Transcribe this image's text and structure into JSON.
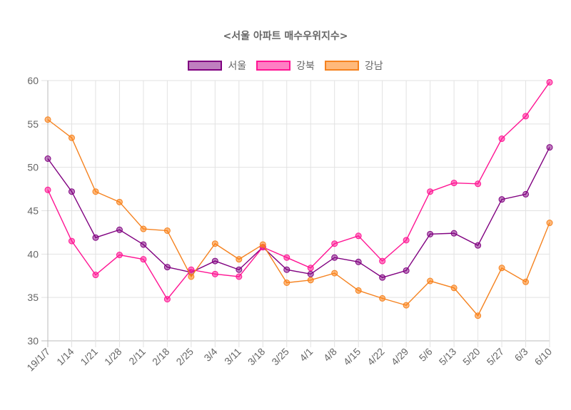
{
  "chart_data": {
    "type": "line",
    "title": "<서울 아파트 매수우위지수>",
    "xlabel": "",
    "ylabel": "",
    "ylim": [
      30,
      60
    ],
    "yticks": [
      30,
      35,
      40,
      45,
      50,
      55,
      60
    ],
    "grid": true,
    "legend_position": "top",
    "categories": [
      "19/1/7",
      "1/14",
      "1/21",
      "1/28",
      "2/11",
      "2/18",
      "2/25",
      "3/4",
      "3/11",
      "3/18",
      "3/25",
      "4/1",
      "4/8",
      "4/15",
      "4/22",
      "4/29",
      "5/6",
      "5/13",
      "5/20",
      "5/27",
      "6/3",
      "6/10"
    ],
    "series": [
      {
        "name": "서울",
        "color": "#800080",
        "fill": "rgba(128,0,128,0.5)",
        "values": [
          51.0,
          47.2,
          41.9,
          42.8,
          41.1,
          38.5,
          37.9,
          39.2,
          38.2,
          40.8,
          38.2,
          37.7,
          39.6,
          39.1,
          37.3,
          38.1,
          42.3,
          42.4,
          41.0,
          46.3,
          46.9,
          52.3
        ]
      },
      {
        "name": "강북",
        "color": "#ff1493",
        "fill": "rgba(255,20,147,0.55)",
        "values": [
          47.4,
          41.5,
          37.6,
          39.9,
          39.4,
          34.8,
          38.2,
          37.7,
          37.4,
          40.8,
          39.6,
          38.4,
          41.2,
          42.1,
          39.2,
          41.6,
          47.2,
          48.2,
          48.1,
          53.3,
          55.9,
          59.8
        ]
      },
      {
        "name": "강남",
        "color": "#f5821f",
        "fill": "rgba(255,127,14,0.55)",
        "values": [
          55.5,
          53.4,
          47.2,
          46.0,
          42.9,
          42.7,
          37.4,
          41.2,
          39.4,
          41.1,
          36.7,
          37.0,
          37.8,
          35.8,
          34.9,
          34.1,
          36.9,
          36.1,
          32.9,
          38.4,
          36.8,
          43.6
        ]
      }
    ]
  }
}
